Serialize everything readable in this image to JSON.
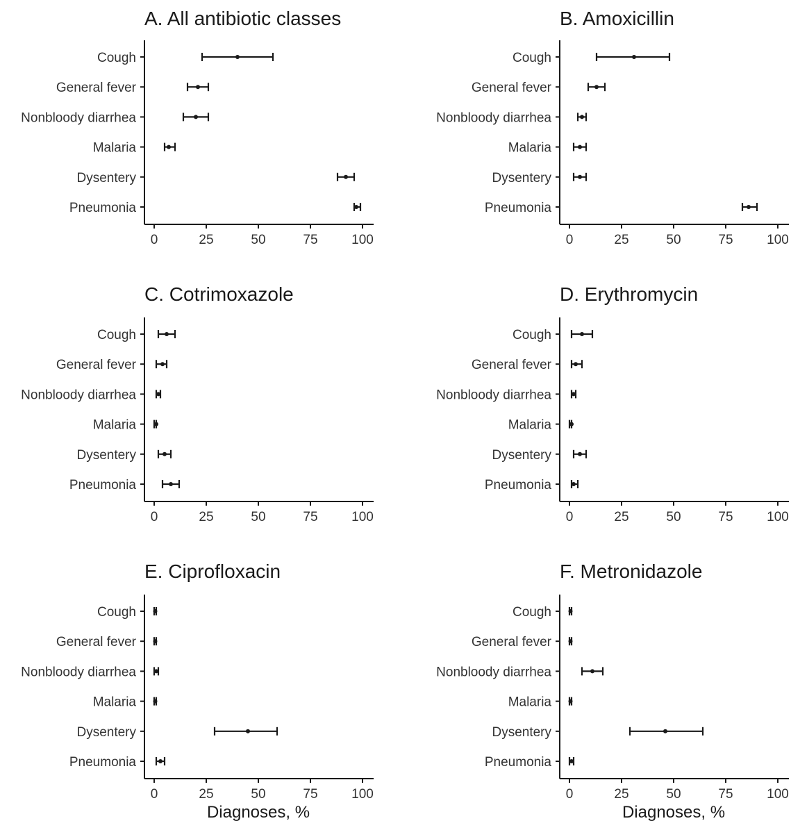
{
  "chart_data": [
    {
      "type": "scatter",
      "title": "A. All antibiotic classes",
      "xlabel": "",
      "xlim": [
        0,
        100
      ],
      "xticks": [
        0,
        25,
        50,
        75,
        100
      ],
      "categories": [
        "Cough",
        "General fever",
        "Nonbloody diarrhea",
        "Malaria",
        "Dysentery",
        "Pneumonia"
      ],
      "values": [
        40,
        21,
        20,
        7,
        92,
        97
      ],
      "ci_low": [
        23,
        16,
        14,
        5,
        88,
        96
      ],
      "ci_high": [
        57,
        26,
        26,
        10,
        96,
        99
      ]
    },
    {
      "type": "scatter",
      "title": "B. Amoxicillin",
      "xlabel": "",
      "xlim": [
        0,
        100
      ],
      "xticks": [
        0,
        25,
        50,
        75,
        100
      ],
      "categories": [
        "Cough",
        "General fever",
        "Nonbloody diarrhea",
        "Malaria",
        "Dysentery",
        "Pneumonia"
      ],
      "values": [
        31,
        13,
        6,
        5,
        5,
        86
      ],
      "ci_low": [
        13,
        9,
        4,
        2,
        2,
        83
      ],
      "ci_high": [
        48,
        17,
        8,
        8,
        8,
        90
      ]
    },
    {
      "type": "scatter",
      "title": "C. Cotrimoxazole",
      "xlabel": "",
      "xlim": [
        0,
        100
      ],
      "xticks": [
        0,
        25,
        50,
        75,
        100
      ],
      "categories": [
        "Cough",
        "General fever",
        "Nonbloody diarrhea",
        "Malaria",
        "Dysentery",
        "Pneumonia"
      ],
      "values": [
        6,
        4,
        2,
        1,
        5,
        8
      ],
      "ci_low": [
        2,
        1,
        1,
        0,
        2,
        4
      ],
      "ci_high": [
        10,
        6,
        3,
        1,
        8,
        12
      ]
    },
    {
      "type": "scatter",
      "title": "D. Erythromycin",
      "xlabel": "",
      "xlim": [
        0,
        100
      ],
      "xticks": [
        0,
        25,
        50,
        75,
        100
      ],
      "categories": [
        "Cough",
        "General fever",
        "Nonbloody diarrhea",
        "Malaria",
        "Dysentery",
        "Pneumonia"
      ],
      "values": [
        6,
        3,
        2,
        1,
        5,
        2
      ],
      "ci_low": [
        1,
        1,
        1,
        0,
        2,
        1
      ],
      "ci_high": [
        11,
        6,
        3,
        1,
        8,
        4
      ]
    },
    {
      "type": "scatter",
      "title": "E. Ciprofloxacin",
      "xlabel": "Diagnoses, %",
      "xlim": [
        0,
        100
      ],
      "xticks": [
        0,
        25,
        50,
        75,
        100
      ],
      "categories": [
        "Cough",
        "General fever",
        "Nonbloody diarrhea",
        "Malaria",
        "Dysentery",
        "Pneumonia"
      ],
      "values": [
        0.5,
        0.5,
        1,
        0.5,
        45,
        3
      ],
      "ci_low": [
        0,
        0,
        0,
        0,
        29,
        1
      ],
      "ci_high": [
        1,
        1,
        2,
        1,
        59,
        5
      ]
    },
    {
      "type": "scatter",
      "title": "F. Metronidazole",
      "xlabel": "Diagnoses, %",
      "xlim": [
        0,
        100
      ],
      "xticks": [
        0,
        25,
        50,
        75,
        100
      ],
      "categories": [
        "Cough",
        "General fever",
        "Nonbloody diarrhea",
        "Malaria",
        "Dysentery",
        "Pneumonia"
      ],
      "values": [
        0.5,
        0.5,
        11,
        0.5,
        46,
        1
      ],
      "ci_low": [
        0,
        0,
        6,
        0,
        29,
        0
      ],
      "ci_high": [
        1,
        1,
        16,
        1,
        64,
        2
      ]
    }
  ]
}
